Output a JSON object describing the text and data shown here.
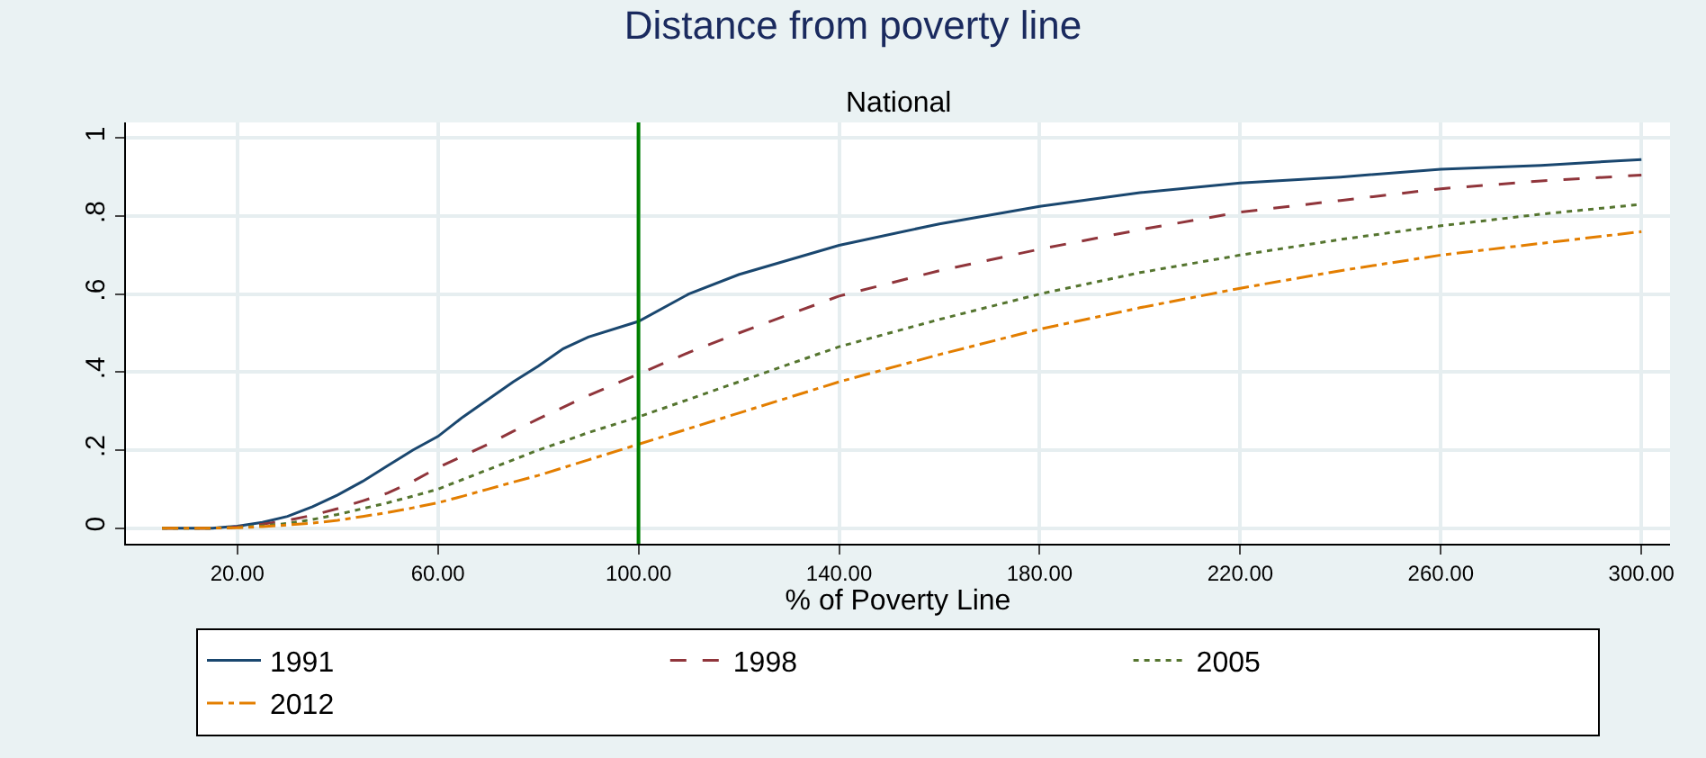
{
  "chart_data": {
    "type": "line",
    "title": "Distance from poverty line",
    "subtitle": "National",
    "xlabel": "% of Poverty Line",
    "x": [
      5,
      15,
      20,
      25,
      30,
      35,
      40,
      45,
      50,
      55,
      60,
      65,
      70,
      75,
      80,
      85,
      90,
      100,
      110,
      120,
      140,
      160,
      180,
      200,
      220,
      240,
      260,
      280,
      300
    ],
    "series": [
      {
        "name": "1991",
        "color": "#1a476f",
        "line_style": "solid",
        "values": [
          0,
          0,
          0.005,
          0.015,
          0.03,
          0.055,
          0.085,
          0.12,
          0.16,
          0.2,
          0.235,
          0.285,
          0.33,
          0.375,
          0.415,
          0.46,
          0.49,
          0.53,
          0.6,
          0.65,
          0.725,
          0.78,
          0.825,
          0.86,
          0.885,
          0.9,
          0.92,
          0.93,
          0.945
        ]
      },
      {
        "name": "1998",
        "color": "#90353b",
        "line_style": "dashed",
        "values": [
          0,
          0,
          0.003,
          0.01,
          0.02,
          0.033,
          0.05,
          0.07,
          0.09,
          0.12,
          0.155,
          0.185,
          0.215,
          0.248,
          0.28,
          0.31,
          0.34,
          0.395,
          0.45,
          0.5,
          0.595,
          0.66,
          0.715,
          0.765,
          0.81,
          0.84,
          0.87,
          0.89,
          0.905
        ]
      },
      {
        "name": "2005",
        "color": "#55752f",
        "line_style": "dotted",
        "values": [
          0,
          0,
          0.002,
          0.006,
          0.012,
          0.022,
          0.035,
          0.05,
          0.065,
          0.082,
          0.1,
          0.125,
          0.15,
          0.175,
          0.2,
          0.222,
          0.245,
          0.285,
          0.33,
          0.375,
          0.465,
          0.535,
          0.6,
          0.655,
          0.7,
          0.74,
          0.775,
          0.805,
          0.83
        ]
      },
      {
        "name": "2012",
        "color": "#e37e00",
        "line_style": "dashdot",
        "values": [
          0,
          0,
          0.001,
          0.004,
          0.008,
          0.013,
          0.02,
          0.03,
          0.04,
          0.052,
          0.065,
          0.082,
          0.1,
          0.118,
          0.135,
          0.155,
          0.175,
          0.215,
          0.255,
          0.295,
          0.375,
          0.445,
          0.51,
          0.565,
          0.615,
          0.66,
          0.7,
          0.73,
          0.76
        ]
      }
    ],
    "xlim": [
      -2.2,
      305.7
    ],
    "ylim": [
      -0.04,
      1.04
    ],
    "xticks": [
      {
        "value": 20,
        "label": "20.00"
      },
      {
        "value": 60,
        "label": "60.00"
      },
      {
        "value": 100,
        "label": "100.00"
      },
      {
        "value": 140,
        "label": "140.00"
      },
      {
        "value": 180,
        "label": "180.00"
      },
      {
        "value": 220,
        "label": "220.00"
      },
      {
        "value": 260,
        "label": "260.00"
      },
      {
        "value": 300,
        "label": "300.00"
      }
    ],
    "yticks": [
      0,
      {
        "value": 0.2,
        "label": ".2"
      },
      {
        "value": 0.4,
        "label": ".4"
      },
      {
        "value": 0.6,
        "label": ".6"
      },
      {
        "value": 0.8,
        "label": ".8"
      },
      1
    ],
    "ref_lines": [
      {
        "axis": "x",
        "value": 100,
        "color": "#008000"
      }
    ],
    "grid": true,
    "legend": "bottom",
    "marker": "none"
  }
}
